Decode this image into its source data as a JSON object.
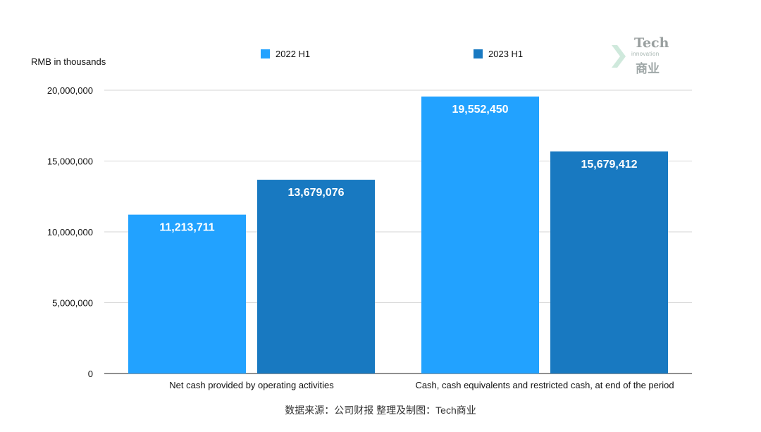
{
  "chart_data": {
    "type": "bar",
    "categories": [
      "Net cash provided by operating activities",
      "Cash, cash equivalents and restricted cash, at end of the period"
    ],
    "series": [
      {
        "name": "2022 H1",
        "values": [
          11213711,
          19552450
        ],
        "labels": [
          "11,213,711",
          "19,552,450"
        ],
        "color": "#22a2ff"
      },
      {
        "name": "2023 H1",
        "values": [
          13679076,
          15679412
        ],
        "labels": [
          "13,679,076",
          "15,679,412"
        ],
        "color": "#1879c1"
      }
    ],
    "ylabel": "RMB in thousands",
    "ylim": [
      0,
      20000000
    ],
    "yticks": [
      0,
      5000000,
      10000000,
      15000000,
      20000000
    ],
    "ytick_labels": [
      "0",
      "5,000,000",
      "10,000,000",
      "15,000,000",
      "20,000,000"
    ],
    "grid": true,
    "legend_position": "top"
  },
  "legend": {
    "item1": "2022 H1",
    "item2": "2023 H1"
  },
  "source_text": "数据来源：公司财报 整理及制图：Tech商业",
  "logo": {
    "tech": "Tech",
    "innovation": "innovation",
    "cn": "商业"
  }
}
